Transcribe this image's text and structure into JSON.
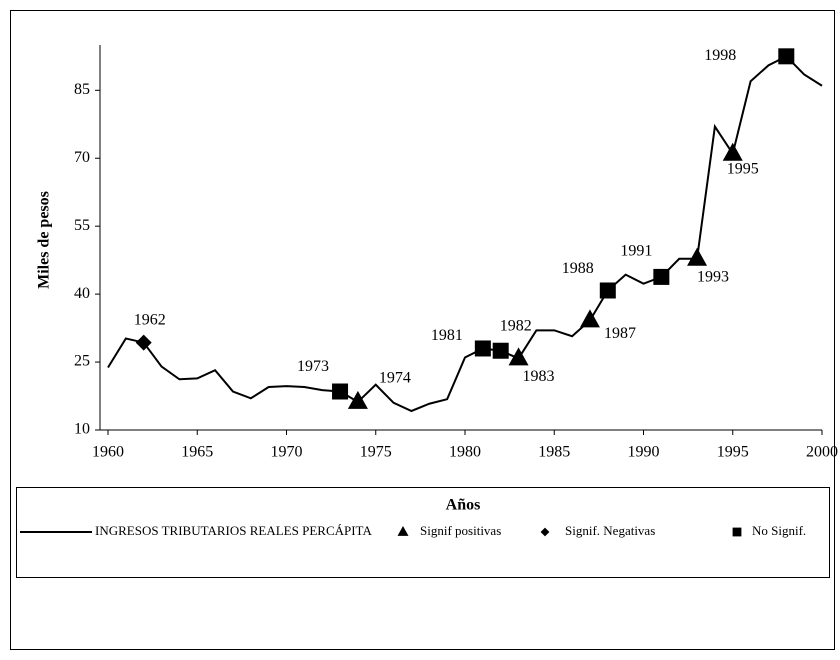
{
  "chart_data": {
    "type": "line",
    "x_label": "Años",
    "y_label": "Miles de pesos",
    "x": [
      1960,
      1961,
      1962,
      1963,
      1964,
      1965,
      1966,
      1967,
      1968,
      1969,
      1970,
      1971,
      1972,
      1973,
      1974,
      1975,
      1976,
      1977,
      1978,
      1979,
      1980,
      1981,
      1982,
      1983,
      1984,
      1985,
      1986,
      1987,
      1988,
      1989,
      1990,
      1991,
      1992,
      1993,
      1994,
      1995,
      1996,
      1997,
      1998,
      1999,
      2000
    ],
    "series": [
      {
        "name": "INGRESOS TRIBUTARIOS REALES PERCÁPITA",
        "color": "#000000",
        "values": [
          23.8,
          30.2,
          29.3,
          24,
          21.2,
          21.4,
          23.2,
          18.5,
          17,
          19.5,
          19.7,
          19.5,
          18.8,
          18.5,
          16.2,
          20,
          16,
          14.2,
          15.8,
          16.8,
          26,
          28,
          27.5,
          25.8,
          32,
          32,
          30.7,
          34.2,
          40.8,
          44.3,
          42.3,
          43.8,
          47.8,
          47.8,
          77,
          71,
          87,
          90.5,
          92.5,
          88.5,
          86
        ]
      }
    ],
    "markers": [
      {
        "name": "Signif positivas",
        "shape": "triangle",
        "color": "#000000",
        "x": [
          1974,
          1983,
          1987,
          1993,
          1995
        ],
        "values": [
          16.2,
          25.8,
          34.2,
          47.8,
          71
        ]
      },
      {
        "name": "Signif. Negativas",
        "shape": "diamond",
        "color": "#000000",
        "x": [
          1962
        ],
        "values": [
          29.3
        ]
      },
      {
        "name": "No Signif.",
        "shape": "square",
        "color": "#000000",
        "x": [
          1973,
          1981,
          1982,
          1988,
          1991,
          1998
        ],
        "values": [
          18.5,
          28,
          27.5,
          40.8,
          43.8,
          92.5
        ]
      }
    ],
    "xlim": [
      1960,
      2000
    ],
    "xticks": [
      1960,
      1965,
      1970,
      1975,
      1980,
      1985,
      1990,
      1995,
      2000
    ],
    "ylim": [
      10,
      95
    ],
    "yticks": [
      10,
      25,
      40,
      55,
      70,
      85
    ],
    "legend": "bottom"
  }
}
